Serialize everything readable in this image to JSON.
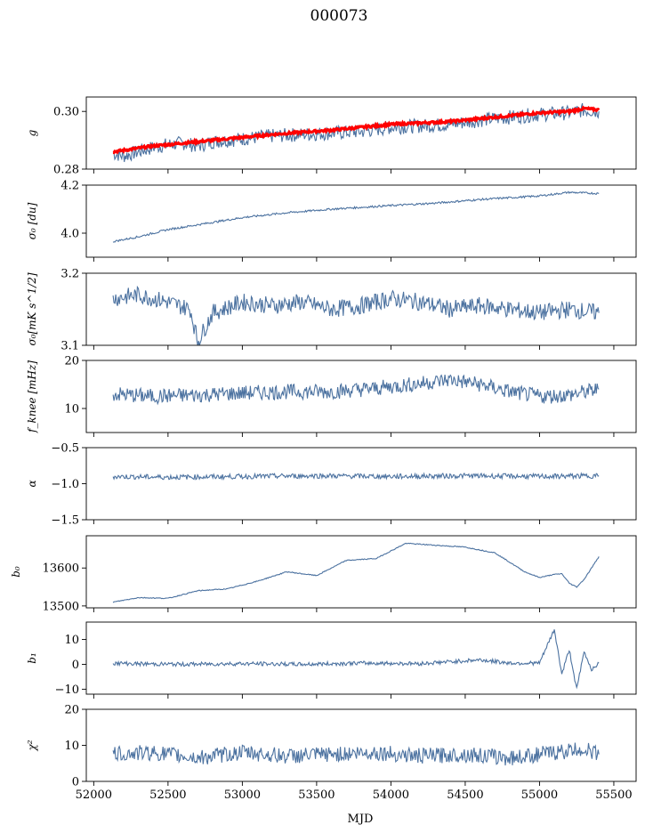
{
  "title": "000073",
  "colors": {
    "series": "#4c72a0",
    "fit": "#ff0000"
  },
  "chart_data": {
    "type": "line",
    "title": "000073",
    "xlabel": "MJD",
    "shared_x": true,
    "xlim": [
      51950,
      55650
    ],
    "xticks": [
      52000,
      52500,
      53000,
      53500,
      54000,
      54500,
      55000,
      55500
    ],
    "xtick_labels": [
      "52000",
      "52500",
      "53000",
      "53500",
      "54000",
      "54500",
      "55000",
      "55500"
    ],
    "data_x_range": [
      52130,
      55400
    ],
    "panels": [
      {
        "ylabel": "g",
        "ylim": [
          0.28,
          0.305
        ],
        "yticks": [
          "0.28",
          "0.30"
        ],
        "ytick_values": [
          0.28,
          0.3
        ],
        "series": [
          {
            "x": [
              52130,
              52200,
              52300,
              52400,
              52500,
              52600,
              52700,
              52800,
              52900,
              53000,
              53200,
              53400,
              53600,
              53800,
              54000,
              54200,
              54400,
              54600,
              54800,
              55000,
              55200,
              55300,
              55400
            ],
            "y": [
              0.2855,
              0.2845,
              0.286,
              0.2875,
              0.2885,
              0.289,
              0.288,
              0.2895,
              0.29,
              0.2905,
              0.2915,
              0.292,
              0.2925,
              0.293,
              0.2945,
              0.295,
              0.2955,
              0.297,
              0.298,
              0.299,
              0.2995,
              0.3005,
              0.3
            ]
          },
          {
            "x": [
              52130,
              52200,
              52400,
              52600,
              52800,
              53000,
              53200,
              53400,
              53600,
              53800,
              54000,
              54200,
              54400,
              54600,
              54800,
              55000,
              55200,
              55300,
              55400
            ],
            "y": [
              0.286,
              0.2865,
              0.288,
              0.289,
              0.29,
              0.291,
              0.292,
              0.2928,
              0.2935,
              0.2945,
              0.2955,
              0.296,
              0.2965,
              0.2975,
              0.2985,
              0.2995,
              0.3,
              0.301,
              0.3005
            ]
          }
        ]
      },
      {
        "ylabel": "σ₀ [du]",
        "ylim": [
          3.9,
          4.2
        ],
        "yticks": [
          "4.0",
          "4.2"
        ],
        "ytick_values": [
          4.0,
          4.2
        ],
        "series": [
          {
            "x": [
              52130,
              52300,
              52500,
              52700,
              53000,
              53300,
              53600,
              54000,
              54300,
              54600,
              55000,
              55200,
              55400
            ],
            "y": [
              3.965,
              3.985,
              4.015,
              4.035,
              4.065,
              4.085,
              4.1,
              4.115,
              4.125,
              4.14,
              4.155,
              4.17,
              4.165
            ]
          }
        ]
      },
      {
        "ylabel": "σ₀[mK s^1/2]",
        "ylim": [
          3.1,
          3.2
        ],
        "yticks": [
          "3.1",
          "3.2"
        ],
        "ytick_values": [
          3.1,
          3.2
        ],
        "series": [
          {
            "x": [
              52130,
              52300,
              52500,
              52650,
              52700,
              52800,
              53000,
              53200,
              53400,
              53600,
              53800,
              54000,
              54200,
              54400,
              54600,
              54800,
              55000,
              55200,
              55400
            ],
            "y": [
              3.165,
              3.17,
              3.16,
              3.15,
              3.105,
              3.145,
              3.16,
              3.155,
              3.16,
              3.15,
              3.155,
              3.165,
              3.16,
              3.15,
              3.155,
              3.15,
              3.145,
              3.15,
              3.145
            ]
          }
        ]
      },
      {
        "ylabel": "f_knee [mHz]",
        "ylim": [
          5,
          20
        ],
        "yticks": [
          "10",
          "20"
        ],
        "ytick_values": [
          10,
          20
        ],
        "series": [
          {
            "x": [
              52130,
              52400,
              52700,
              53000,
              53300,
              53600,
              53900,
              54200,
              54400,
              54600,
              54800,
              55000,
              55200,
              55400
            ],
            "y": [
              13.0,
              12.5,
              12.8,
              13.2,
              13.5,
              13.5,
              14.2,
              15.2,
              16.0,
              15.0,
              13.5,
              12.5,
              12.8,
              14.0
            ]
          }
        ]
      },
      {
        "ylabel": "α",
        "ylim": [
          -1.5,
          -0.5
        ],
        "yticks": [
          "−1.5",
          "−1.0",
          "−0.5"
        ],
        "ytick_values": [
          -1.5,
          -1.0,
          -0.5
        ],
        "series": [
          {
            "x": [
              52130,
              52500,
              53000,
              53500,
              54000,
              54500,
              55000,
              55400
            ],
            "y": [
              -0.9,
              -0.91,
              -0.9,
              -0.89,
              -0.9,
              -0.89,
              -0.9,
              -0.89
            ]
          }
        ]
      },
      {
        "ylabel": "b₀",
        "ylim": [
          13495,
          13685
        ],
        "yticks": [
          "13500",
          "13600"
        ],
        "ytick_values": [
          13500,
          13600
        ],
        "series": [
          {
            "x": [
              52130,
              52300,
              52500,
              52700,
              52900,
              53100,
              53300,
              53500,
              53700,
              53900,
              54100,
              54300,
              54500,
              54700,
              54900,
              55000,
              55100,
              55150,
              55200,
              55250,
              55300,
              55350,
              55400
            ],
            "y": [
              13510,
              13522,
              13520,
              13540,
              13545,
              13565,
              13590,
              13580,
              13620,
              13625,
              13665,
              13660,
              13655,
              13640,
              13590,
              13575,
              13583,
              13585,
              13560,
              13550,
              13570,
              13600,
              13630
            ]
          }
        ]
      },
      {
        "ylabel": "b₁",
        "ylim": [
          -12,
          17
        ],
        "yticks": [
          "−10",
          "0",
          "10"
        ],
        "ytick_values": [
          -10,
          0,
          10
        ],
        "series": [
          {
            "x": [
              52130,
              52300,
              52600,
              53000,
              53400,
              53800,
              54200,
              54600,
              54800,
              55000,
              55100,
              55150,
              55200,
              55250,
              55300,
              55350,
              55400
            ],
            "y": [
              0.5,
              0.2,
              0.0,
              0.3,
              0.0,
              0.5,
              0.3,
              1.8,
              0.5,
              0.5,
              14,
              -4,
              6,
              -10,
              5,
              -2,
              0.5
            ]
          }
        ]
      },
      {
        "ylabel": "χ²",
        "ylim": [
          0,
          20
        ],
        "yticks": [
          "0",
          "10",
          "20"
        ],
        "ytick_values": [
          0,
          10,
          20
        ],
        "series": [
          {
            "x": [
              52130,
              52400,
              52700,
              53000,
              53300,
              53600,
              53900,
              54200,
              54500,
              54800,
              55100,
              55300,
              55400
            ],
            "y": [
              7.5,
              8.0,
              6.5,
              8.0,
              7.0,
              7.5,
              8.0,
              7.0,
              7.5,
              6.5,
              8.0,
              9.0,
              7.5
            ]
          }
        ]
      }
    ]
  }
}
